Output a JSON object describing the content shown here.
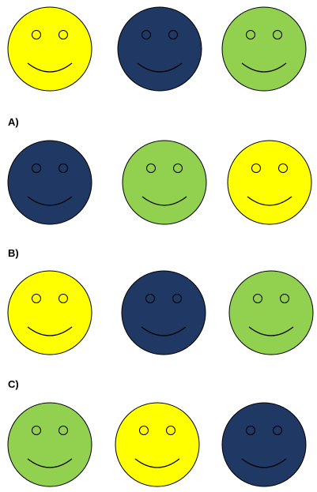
{
  "colors": {
    "yellow": "#ffff00",
    "navy": "#1f3864",
    "green": "#92d050",
    "outline": "#000000"
  },
  "rows": [
    {
      "label": "",
      "faces": [
        "yellow",
        "navy",
        "green"
      ]
    },
    {
      "label": "A)",
      "faces": [
        "navy",
        "green",
        "yellow"
      ]
    },
    {
      "label": "B)",
      "faces": [
        "yellow",
        "navy",
        "green"
      ]
    },
    {
      "label": "C)",
      "faces": [
        "green",
        "yellow",
        "navy"
      ]
    }
  ]
}
